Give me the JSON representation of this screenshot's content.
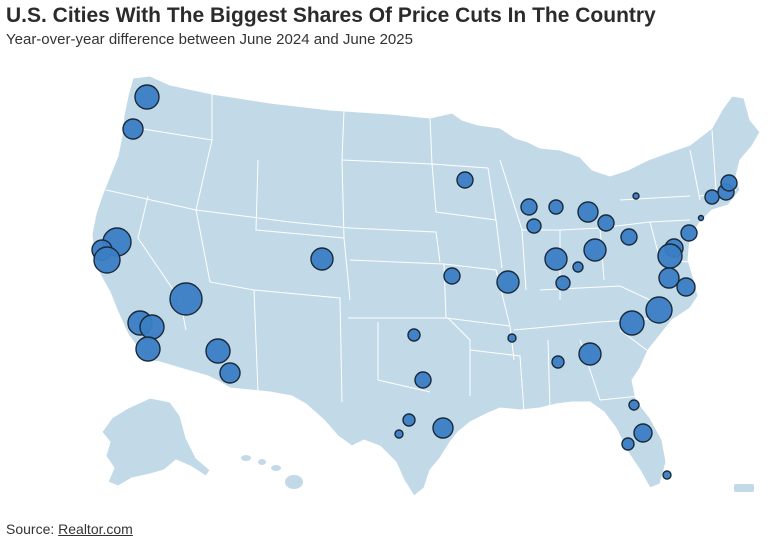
{
  "header": {
    "title": "U.S. Cities With The Biggest Shares Of Price Cuts In The Country",
    "subtitle": "Year-over-year difference between June 2024 and June 2025"
  },
  "footer": {
    "source_label": "Source:",
    "source_link": "Realtor.com"
  },
  "colors": {
    "land": "#c2d9e8",
    "state_border": "#ffffff",
    "bubble_fill": "#3a7ec4",
    "bubble_stroke": "#1a2a3a"
  },
  "map": {
    "region": "contiguous United States with Alaska and Hawaii insets",
    "bubbles": [
      {
        "location": "Seattle, WA",
        "size": "medium"
      },
      {
        "location": "Portland, OR",
        "size": "small-medium"
      },
      {
        "location": "Sacramento, CA",
        "size": "large"
      },
      {
        "location": "San Francisco, CA",
        "size": "medium"
      },
      {
        "location": "San Jose, CA",
        "size": "large"
      },
      {
        "location": "Las Vegas, NV",
        "size": "extra-large"
      },
      {
        "location": "Los Angeles, CA",
        "size": "large"
      },
      {
        "location": "Riverside, CA",
        "size": "medium"
      },
      {
        "location": "San Diego, CA",
        "size": "medium"
      },
      {
        "location": "Phoenix, AZ",
        "size": "large"
      },
      {
        "location": "Tucson, AZ",
        "size": "small-medium"
      },
      {
        "location": "Denver, CO",
        "size": "medium"
      },
      {
        "location": "Minneapolis, MN",
        "size": "small-medium"
      },
      {
        "location": "Kansas City, MO",
        "size": "small-medium"
      },
      {
        "location": "Oklahoma City, OK",
        "size": "small"
      },
      {
        "location": "Dallas, TX",
        "size": "small-medium"
      },
      {
        "location": "Austin, TX",
        "size": "small"
      },
      {
        "location": "San Antonio, TX",
        "size": "tiny"
      },
      {
        "location": "Houston, TX",
        "size": "medium"
      },
      {
        "location": "Memphis, TN",
        "size": "tiny"
      },
      {
        "location": "St. Louis, MO",
        "size": "medium"
      },
      {
        "location": "Milwaukee, WI",
        "size": "small-medium"
      },
      {
        "location": "Chicago, IL",
        "size": "small-medium"
      },
      {
        "location": "Grand Rapids, MI",
        "size": "small-medium"
      },
      {
        "location": "Detroit, MI",
        "size": "medium"
      },
      {
        "location": "Indianapolis, IN",
        "size": "medium"
      },
      {
        "location": "Louisville, KY",
        "size": "small-medium"
      },
      {
        "location": "Cincinnati, OH",
        "size": "tiny"
      },
      {
        "location": "Columbus, OH",
        "size": "medium"
      },
      {
        "location": "Cleveland, OH",
        "size": "small-medium"
      },
      {
        "location": "Pittsburgh, PA",
        "size": "small-medium"
      },
      {
        "location": "Buffalo, NY",
        "size": "tiny"
      },
      {
        "location": "Hartford, CT",
        "size": "small-medium"
      },
      {
        "location": "Providence, RI",
        "size": "small-medium"
      },
      {
        "location": "Boston, MA",
        "size": "small-medium"
      },
      {
        "location": "New York, NY",
        "size": "tiny"
      },
      {
        "location": "Philadelphia, PA",
        "size": "small-medium"
      },
      {
        "location": "Baltimore, MD",
        "size": "medium"
      },
      {
        "location": "Washington, DC",
        "size": "medium"
      },
      {
        "location": "Richmond, VA",
        "size": "medium"
      },
      {
        "location": "Virginia Beach, VA",
        "size": "medium"
      },
      {
        "location": "Raleigh, NC",
        "size": "large"
      },
      {
        "location": "Charlotte, NC",
        "size": "large"
      },
      {
        "location": "Atlanta, GA",
        "size": "medium"
      },
      {
        "location": "Birmingham, AL",
        "size": "small"
      },
      {
        "location": "Jacksonville, FL",
        "size": "tiny"
      },
      {
        "location": "Orlando, FL",
        "size": "medium"
      },
      {
        "location": "Tampa, FL",
        "size": "small"
      },
      {
        "location": "Miami, FL",
        "size": "tiny"
      }
    ]
  }
}
